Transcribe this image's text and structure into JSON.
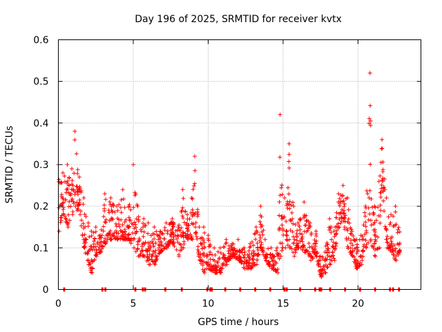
{
  "chart_data": {
    "type": "scatter",
    "title": "Day 196 of 2025, SRMTID for receiver kvtx",
    "xlabel": "GPS time / hours",
    "ylabel": "SRMTID / TECUs",
    "xlim": [
      0,
      24.2
    ],
    "ylim": [
      0,
      0.6
    ],
    "x_ticks": [
      0,
      5,
      10,
      15,
      20
    ],
    "x_tick_labels": [
      "0",
      "5",
      "10",
      "15",
      "20"
    ],
    "y_ticks": [
      0,
      0.1,
      0.2,
      0.3,
      0.4,
      0.5,
      0.6
    ],
    "y_tick_labels": [
      "0",
      "0.1",
      "0.2",
      "0.3",
      "0.4",
      "0.5",
      "0.6"
    ],
    "grid": true,
    "marker": "+",
    "color": "#ff0000",
    "series": [
      {
        "name": "SRMTID",
        "envelope": [
          [
            0.0,
            0.14,
            0.3
          ],
          [
            0.3,
            0.18,
            0.28
          ],
          [
            0.6,
            0.15,
            0.3
          ],
          [
            0.9,
            0.18,
            0.29
          ],
          [
            1.1,
            0.2,
            0.38
          ],
          [
            1.4,
            0.18,
            0.27
          ],
          [
            1.7,
            0.1,
            0.22
          ],
          [
            2.0,
            0.06,
            0.16
          ],
          [
            2.2,
            0.04,
            0.14
          ],
          [
            2.5,
            0.08,
            0.15
          ],
          [
            2.8,
            0.09,
            0.13
          ],
          [
            3.1,
            0.11,
            0.23
          ],
          [
            3.5,
            0.12,
            0.22
          ],
          [
            3.9,
            0.12,
            0.2
          ],
          [
            4.3,
            0.12,
            0.24
          ],
          [
            4.7,
            0.12,
            0.2
          ],
          [
            5.0,
            0.1,
            0.3
          ],
          [
            5.3,
            0.08,
            0.2
          ],
          [
            5.7,
            0.08,
            0.17
          ],
          [
            6.0,
            0.06,
            0.16
          ],
          [
            6.4,
            0.06,
            0.15
          ],
          [
            6.8,
            0.09,
            0.14
          ],
          [
            7.2,
            0.1,
            0.16
          ],
          [
            7.6,
            0.11,
            0.17
          ],
          [
            8.0,
            0.08,
            0.15
          ],
          [
            8.3,
            0.1,
            0.24
          ],
          [
            8.6,
            0.12,
            0.18
          ],
          [
            8.9,
            0.12,
            0.22
          ],
          [
            9.1,
            0.15,
            0.32
          ],
          [
            9.4,
            0.07,
            0.15
          ],
          [
            9.7,
            0.04,
            0.15
          ],
          [
            10.0,
            0.05,
            0.13
          ],
          [
            10.4,
            0.04,
            0.1
          ],
          [
            10.8,
            0.04,
            0.1
          ],
          [
            11.2,
            0.06,
            0.12
          ],
          [
            11.6,
            0.08,
            0.11
          ],
          [
            12.0,
            0.07,
            0.12
          ],
          [
            12.4,
            0.05,
            0.1
          ],
          [
            12.8,
            0.05,
            0.11
          ],
          [
            13.2,
            0.06,
            0.15
          ],
          [
            13.5,
            0.1,
            0.2
          ],
          [
            13.8,
            0.07,
            0.12
          ],
          [
            14.2,
            0.05,
            0.1
          ],
          [
            14.6,
            0.04,
            0.1
          ],
          [
            14.8,
            0.08,
            0.42
          ],
          [
            15.1,
            0.1,
            0.22
          ],
          [
            15.4,
            0.1,
            0.35
          ],
          [
            15.7,
            0.08,
            0.2
          ],
          [
            16.0,
            0.1,
            0.16
          ],
          [
            16.4,
            0.09,
            0.21
          ],
          [
            16.8,
            0.07,
            0.16
          ],
          [
            17.2,
            0.08,
            0.14
          ],
          [
            17.5,
            0.03,
            0.08
          ],
          [
            17.8,
            0.04,
            0.09
          ],
          [
            18.1,
            0.06,
            0.17
          ],
          [
            18.4,
            0.07,
            0.14
          ],
          [
            18.7,
            0.15,
            0.23
          ],
          [
            19.0,
            0.17,
            0.25
          ],
          [
            19.3,
            0.1,
            0.22
          ],
          [
            19.6,
            0.08,
            0.14
          ],
          [
            19.9,
            0.05,
            0.12
          ],
          [
            20.2,
            0.06,
            0.13
          ],
          [
            20.5,
            0.1,
            0.2
          ],
          [
            20.8,
            0.12,
            0.52
          ],
          [
            21.1,
            0.08,
            0.2
          ],
          [
            21.4,
            0.1,
            0.26
          ],
          [
            21.6,
            0.26,
            0.36
          ],
          [
            21.9,
            0.1,
            0.22
          ],
          [
            22.2,
            0.09,
            0.18
          ],
          [
            22.5,
            0.07,
            0.2
          ],
          [
            22.8,
            0.09,
            0.14
          ]
        ],
        "zero_points": [
          0.35,
          2.9,
          3.1,
          5.1,
          5.6,
          5.75,
          7.1,
          8.2,
          9.9,
          10.1,
          10.2,
          11.1,
          12.1,
          13.1,
          14.1,
          15.05,
          15.2,
          16.1,
          17.1,
          17.4,
          17.5,
          18.1,
          19.1,
          20.1,
          21.1,
          22.1,
          22.3,
          22.7
        ]
      }
    ]
  }
}
